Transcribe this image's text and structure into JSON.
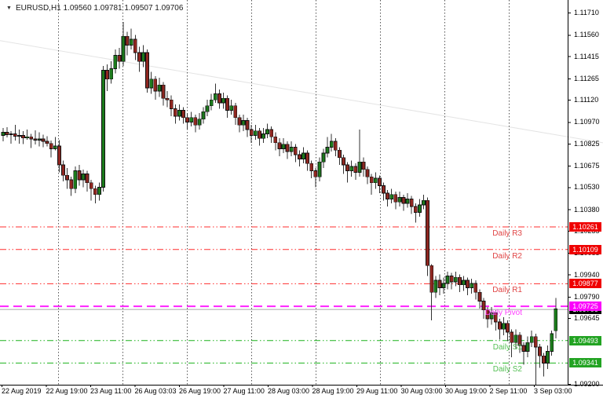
{
  "header": {
    "dropdown_marker": "▼",
    "symbol_info": "EURUSD,H1 1.09560 1.09781 1.09507 1.09706"
  },
  "chart_data": {
    "type": "candlestick",
    "symbol": "EURUSD",
    "timeframe": "H1",
    "last_candle_ohlc": {
      "open": "1.09560",
      "high": "1.09781",
      "low": "1.09507",
      "close": "1.09706"
    },
    "y_axis": {
      "max": 1.1171,
      "min": 1.092,
      "ticks": [
        "1.11710",
        "1.11560",
        "1.11415",
        "1.11265",
        "1.11120",
        "1.10970",
        "1.10825",
        "1.10675",
        "1.10530",
        "1.10380",
        "1.10235",
        "1.10085",
        "1.09940",
        "1.09790",
        "1.09645",
        "1.09200"
      ],
      "tick_prices": [
        1.1171,
        1.1156,
        1.11415,
        1.11265,
        1.1112,
        1.1097,
        1.10825,
        1.10675,
        1.1053,
        1.1038,
        1.10235,
        1.10085,
        1.0994,
        1.0979,
        1.09645,
        1.092
      ]
    },
    "x_axis": {
      "labels": [
        "22 Aug 2019",
        "22 Aug 19:00",
        "23 Aug 11:00",
        "26 Aug 03:03",
        "26 Aug 19:00",
        "27 Aug 11:00",
        "28 Aug 03:00",
        "28 Aug 19:00",
        "29 Aug 11:00",
        "30 Aug 03:00",
        "30 Aug 19:00",
        "2 Sep 11:00",
        "3 Sep 03:00"
      ]
    },
    "levels": [
      {
        "label": "Daily R3",
        "price": 1.10261,
        "line_color": "#ff2d2d",
        "label_color": "#e04545",
        "style": "dash-dot-dot",
        "badge": "1.10261",
        "badge_bg": "#ef0000"
      },
      {
        "label": "Daily R2",
        "price": 1.10109,
        "line_color": "#ff2d2d",
        "label_color": "#e04545",
        "style": "dash-dot-dot",
        "badge": "1.10109",
        "badge_bg": "#ef0000"
      },
      {
        "label": "Daily R1",
        "price": 1.09877,
        "line_color": "#ff2d2d",
        "label_color": "#e04545",
        "style": "dash-dot-dot",
        "badge": "1.09877",
        "badge_bg": "#ef0000"
      },
      {
        "label": "Daily Pivot",
        "price": 1.09725,
        "line_color": "#ff22ff",
        "label_color": "#ff3cff",
        "style": "long-dash",
        "badge": "1.09725",
        "badge_bg": "#fb00fb"
      },
      {
        "label": "Daily S1",
        "price": 1.09493,
        "line_color": "#1db21d",
        "label_color": "#55c055",
        "style": "dash-dot-dot",
        "badge": "1.09493",
        "badge_bg": "#22a322"
      },
      {
        "label": "Daily S2",
        "price": 1.09341,
        "line_color": "#1db21d",
        "label_color": "#55c055",
        "style": "dash-dot-dot",
        "badge": "1.09341",
        "badge_bg": "#22a322"
      }
    ],
    "current_price": {
      "value": "1.09706",
      "price": 1.09706,
      "line_color": "#a8a8a8",
      "badge_bg": "#000000"
    },
    "trendline": {
      "from_price": 1.1152,
      "to_price": 1.1083,
      "color": "#e4e4e4"
    },
    "colors": {
      "bull": "#1b7a1b",
      "bear": "#8f2620",
      "outline": "#111111",
      "wick": "#333333",
      "grid": "#555555",
      "axis": "#000000"
    },
    "candles": [
      [
        1.1088,
        1.1093,
        1.1084,
        1.109
      ],
      [
        1.109,
        1.10935,
        1.10865,
        1.10885
      ],
      [
        1.10885,
        1.1091,
        1.10825,
        1.1089
      ],
      [
        1.1089,
        1.1095,
        1.10845,
        1.10875
      ],
      [
        1.10875,
        1.1092,
        1.10825,
        1.1088
      ],
      [
        1.1088,
        1.1091,
        1.10822,
        1.10862
      ],
      [
        1.10862,
        1.1092,
        1.1085,
        1.1087
      ],
      [
        1.1087,
        1.1089,
        1.10795,
        1.10855
      ],
      [
        1.10855,
        1.10915,
        1.10818,
        1.10848
      ],
      [
        1.10848,
        1.109,
        1.10806,
        1.10856
      ],
      [
        1.10856,
        1.10886,
        1.108,
        1.1084
      ],
      [
        1.1084,
        1.10875,
        1.10805,
        1.10825
      ],
      [
        1.10825,
        1.10845,
        1.1073,
        1.1079
      ],
      [
        1.1079,
        1.10868,
        1.10778,
        1.10808
      ],
      [
        1.10808,
        1.10848,
        1.1063,
        1.1068
      ],
      [
        1.1068,
        1.1071,
        1.1057,
        1.1061
      ],
      [
        1.1061,
        1.1066,
        1.1052,
        1.1058
      ],
      [
        1.1058,
        1.106,
        1.1047,
        1.1052
      ],
      [
        1.1052,
        1.1067,
        1.1049,
        1.1064
      ],
      [
        1.1064,
        1.1068,
        1.1054,
        1.1058
      ],
      [
        1.1058,
        1.1065,
        1.1053,
        1.1062
      ],
      [
        1.1062,
        1.1064,
        1.105,
        1.1056
      ],
      [
        1.1056,
        1.1058,
        1.1044,
        1.1052
      ],
      [
        1.1052,
        1.1054,
        1.1042,
        1.1048
      ],
      [
        1.1048,
        1.1056,
        1.1044,
        1.1053
      ],
      [
        1.1053,
        1.1135,
        1.105,
        1.1132
      ],
      [
        1.1132,
        1.1136,
        1.1118,
        1.1126
      ],
      [
        1.1126,
        1.1138,
        1.1123,
        1.1133
      ],
      [
        1.1133,
        1.1146,
        1.113,
        1.1142
      ],
      [
        1.1142,
        1.1147,
        1.1133,
        1.1138
      ],
      [
        1.1138,
        1.11645,
        1.1135,
        1.1155
      ],
      [
        1.1155,
        1.1158,
        1.1142,
        1.1149
      ],
      [
        1.1149,
        1.116,
        1.1146,
        1.1153
      ],
      [
        1.1153,
        1.1156,
        1.1139,
        1.1144
      ],
      [
        1.1144,
        1.1148,
        1.1131,
        1.1138
      ],
      [
        1.1138,
        1.1149,
        1.1134,
        1.1144
      ],
      [
        1.1144,
        1.1146,
        1.1117,
        1.112
      ],
      [
        1.112,
        1.1131,
        1.1116,
        1.1126
      ],
      [
        1.1126,
        1.1128,
        1.1112,
        1.1118
      ],
      [
        1.1118,
        1.1127,
        1.1114,
        1.1122
      ],
      [
        1.1122,
        1.1124,
        1.1108,
        1.1113
      ],
      [
        1.1113,
        1.1118,
        1.1107,
        1.1112
      ],
      [
        1.1112,
        1.1115,
        1.1101,
        1.1106
      ],
      [
        1.1106,
        1.1109,
        1.1096,
        1.1101
      ],
      [
        1.1101,
        1.1109,
        1.1098,
        1.1105
      ],
      [
        1.1105,
        1.1107,
        1.1096,
        1.11
      ],
      [
        1.11,
        1.1103,
        1.1092,
        1.1097
      ],
      [
        1.1097,
        1.1104,
        1.1094,
        1.11
      ],
      [
        1.11,
        1.1102,
        1.109,
        1.1095
      ],
      [
        1.1095,
        1.1103,
        1.1092,
        1.1099
      ],
      [
        1.1099,
        1.1107,
        1.1096,
        1.1104
      ],
      [
        1.1104,
        1.1112,
        1.1101,
        1.1108
      ],
      [
        1.1108,
        1.1116,
        1.1105,
        1.1112
      ],
      [
        1.1112,
        1.1123,
        1.111,
        1.1116
      ],
      [
        1.1116,
        1.1119,
        1.1106,
        1.111
      ],
      [
        1.111,
        1.1117,
        1.1106,
        1.1113
      ],
      [
        1.1113,
        1.1115,
        1.11,
        1.1105
      ],
      [
        1.1105,
        1.1112,
        1.1102,
        1.1108
      ],
      [
        1.1108,
        1.111,
        1.1095,
        1.11
      ],
      [
        1.11,
        1.1102,
        1.109,
        1.1095
      ],
      [
        1.1095,
        1.1102,
        1.1091,
        1.1098
      ],
      [
        1.1098,
        1.11,
        1.1087,
        1.1092
      ],
      [
        1.1092,
        1.1095,
        1.1083,
        1.1088
      ],
      [
        1.1088,
        1.1095,
        1.1085,
        1.1091
      ],
      [
        1.1091,
        1.1093,
        1.1081,
        1.1086
      ],
      [
        1.1086,
        1.1093,
        1.1083,
        1.1089
      ],
      [
        1.1089,
        1.1096,
        1.1086,
        1.1092
      ],
      [
        1.1092,
        1.1094,
        1.1083,
        1.1087
      ],
      [
        1.1087,
        1.109,
        1.1078,
        1.1083
      ],
      [
        1.1083,
        1.1086,
        1.1074,
        1.1079
      ],
      [
        1.1079,
        1.1086,
        1.1076,
        1.1082
      ],
      [
        1.1082,
        1.1084,
        1.1072,
        1.1077
      ],
      [
        1.1077,
        1.1084,
        1.1074,
        1.108
      ],
      [
        1.108,
        1.1082,
        1.107,
        1.1075
      ],
      [
        1.1075,
        1.1078,
        1.1067,
        1.1072
      ],
      [
        1.1072,
        1.108,
        1.1069,
        1.1076
      ],
      [
        1.1076,
        1.1078,
        1.1064,
        1.1069
      ],
      [
        1.1069,
        1.1071,
        1.1059,
        1.1064
      ],
      [
        1.1064,
        1.1066,
        1.1053,
        1.106
      ],
      [
        1.106,
        1.1073,
        1.1057,
        1.107
      ],
      [
        1.107,
        1.1079,
        1.1066,
        1.1076
      ],
      [
        1.1076,
        1.1087,
        1.1073,
        1.108
      ],
      [
        1.108,
        1.1089,
        1.1077,
        1.1084
      ],
      [
        1.1084,
        1.1086,
        1.1074,
        1.1078
      ],
      [
        1.1078,
        1.108,
        1.1068,
        1.1073
      ],
      [
        1.1073,
        1.1075,
        1.1062,
        1.1068
      ],
      [
        1.1068,
        1.107,
        1.1056,
        1.1064
      ],
      [
        1.1064,
        1.1071,
        1.106,
        1.1067
      ],
      [
        1.1067,
        1.1069,
        1.1058,
        1.1063
      ],
      [
        1.1063,
        1.1092,
        1.106,
        1.107
      ],
      [
        1.107,
        1.1073,
        1.106,
        1.1065
      ],
      [
        1.1065,
        1.1067,
        1.1055,
        1.106
      ],
      [
        1.106,
        1.1062,
        1.1048,
        1.1056
      ],
      [
        1.1056,
        1.1063,
        1.1052,
        1.1059
      ],
      [
        1.1059,
        1.1061,
        1.1049,
        1.1054
      ],
      [
        1.1054,
        1.1056,
        1.1044,
        1.1049
      ],
      [
        1.1049,
        1.1051,
        1.104,
        1.1045
      ],
      [
        1.1045,
        1.1052,
        1.1042,
        1.1048
      ],
      [
        1.1048,
        1.105,
        1.1038,
        1.1043
      ],
      [
        1.1043,
        1.105,
        1.104,
        1.1046
      ],
      [
        1.1046,
        1.1048,
        1.1037,
        1.1042
      ],
      [
        1.1042,
        1.1049,
        1.1039,
        1.1045
      ],
      [
        1.1045,
        1.1047,
        1.1035,
        1.104
      ],
      [
        1.104,
        1.1042,
        1.1029,
        1.1036
      ],
      [
        1.1036,
        1.1045,
        1.1033,
        1.1041
      ],
      [
        1.1041,
        1.1048,
        1.1038,
        1.1044
      ],
      [
        1.1044,
        1.1046,
        1.0993,
        1.1
      ],
      [
        1.1,
        1.1001,
        1.0963,
        1.0982
      ],
      [
        1.0982,
        1.0993,
        1.0978,
        1.099
      ],
      [
        1.099,
        1.0994,
        1.098,
        1.0985
      ],
      [
        1.0985,
        1.0992,
        1.0981,
        1.0988
      ],
      [
        1.0988,
        1.0996,
        1.0984,
        1.0993
      ],
      [
        1.0993,
        1.0995,
        1.0984,
        1.0989
      ],
      [
        1.0989,
        1.0996,
        1.0986,
        1.0992
      ],
      [
        1.0992,
        1.0994,
        1.0982,
        1.0987
      ],
      [
        1.0987,
        1.0993,
        1.0983,
        1.099
      ],
      [
        1.099,
        1.0992,
        1.098,
        1.0985
      ],
      [
        1.0985,
        1.0991,
        1.0981,
        1.0988
      ],
      [
        1.0988,
        1.099,
        1.0977,
        1.0982
      ],
      [
        1.0982,
        1.0984,
        1.0971,
        1.0976
      ],
      [
        1.0976,
        1.0978,
        1.0964,
        1.097
      ],
      [
        1.097,
        1.0972,
        1.0958,
        1.0964
      ],
      [
        1.0964,
        1.0972,
        1.096,
        1.0968
      ],
      [
        1.0968,
        1.097,
        1.0956,
        1.0962
      ],
      [
        1.0962,
        1.0964,
        1.095,
        1.0957
      ],
      [
        1.0957,
        1.0965,
        1.0953,
        1.0961
      ],
      [
        1.0961,
        1.0963,
        1.0949,
        1.0955
      ],
      [
        1.0955,
        1.0957,
        1.0938,
        1.0948
      ],
      [
        1.0948,
        1.0957,
        1.0944,
        1.0953
      ],
      [
        1.0953,
        1.0955,
        1.0941,
        1.0946
      ],
      [
        1.0946,
        1.0948,
        1.0933,
        1.0942
      ],
      [
        1.0942,
        1.0952,
        1.0938,
        1.0948
      ],
      [
        1.0948,
        1.0956,
        1.0945,
        1.0952
      ],
      [
        1.0952,
        1.0954,
        1.0919,
        1.0945
      ],
      [
        1.0945,
        1.0947,
        1.0931,
        1.0939
      ],
      [
        1.0939,
        1.0941,
        1.0925,
        1.0934
      ],
      [
        1.0934,
        1.0946,
        1.093,
        1.0942
      ],
      [
        1.0942,
        1.0956,
        1.0939,
        1.0954
      ],
      [
        1.0956,
        1.09781,
        1.09507,
        1.09706
      ]
    ]
  }
}
